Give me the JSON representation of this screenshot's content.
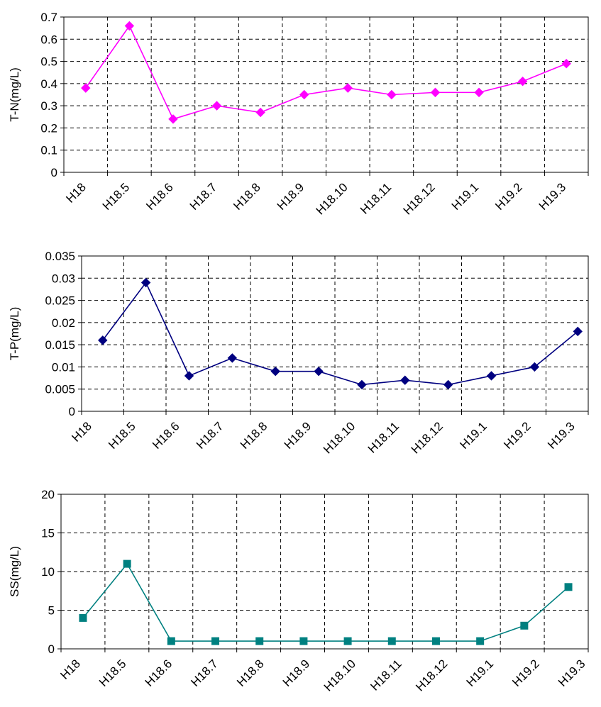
{
  "chart_data": [
    {
      "type": "line",
      "categories": [
        "H18",
        "H18.5",
        "H18.6",
        "H18.7",
        "H18.8",
        "H18.9",
        "H18.10",
        "H18.11",
        "H18.12",
        "H19.1",
        "H19.2",
        "H19.3"
      ],
      "series": [
        {
          "values": [
            0.38,
            0.66,
            0.24,
            0.3,
            0.27,
            0.35,
            0.38,
            0.35,
            0.36,
            0.36,
            0.41,
            0.49
          ]
        }
      ],
      "ylabel": "T-N(mg/L)",
      "ylim": [
        0,
        0.7
      ],
      "yticks": [
        "0",
        "0.1",
        "0.2",
        "0.3",
        "0.4",
        "0.5",
        "0.6",
        "0.7"
      ],
      "grid": true,
      "marker": "diamond",
      "color": "#FF00FF"
    },
    {
      "type": "line",
      "categories": [
        "H18",
        "H18.5",
        "H18.6",
        "H18.7",
        "H18.8",
        "H18.9",
        "H18.10",
        "H18.11",
        "H18.12",
        "H19.1",
        "H19.2",
        "H19.3"
      ],
      "series": [
        {
          "values": [
            0.016,
            0.029,
            0.008,
            0.012,
            0.009,
            0.009,
            0.006,
            0.007,
            0.006,
            0.008,
            0.01,
            0.018
          ]
        }
      ],
      "ylabel": "T-P(mg/L)",
      "ylim": [
        0,
        0.035
      ],
      "yticks": [
        "0",
        "0.005",
        "0.01",
        "0.015",
        "0.02",
        "0.025",
        "0.03",
        "0.035"
      ],
      "grid": true,
      "marker": "diamond",
      "color": "#000080"
    },
    {
      "type": "line",
      "categories": [
        "H18",
        "H18.5",
        "H18.6",
        "H18.7",
        "H18.8",
        "H18.9",
        "H18.10",
        "H18.11",
        "H18.12",
        "H19.1",
        "H19.2",
        "H19.3"
      ],
      "series": [
        {
          "values": [
            4,
            11,
            1,
            1,
            1,
            1,
            1,
            1,
            1,
            1,
            3,
            8
          ]
        }
      ],
      "ylabel": "SS(mg/L)",
      "ylim": [
        0,
        20
      ],
      "yticks": [
        "0",
        "5",
        "10",
        "15",
        "20"
      ],
      "grid": true,
      "marker": "square",
      "color": "#008080"
    }
  ]
}
